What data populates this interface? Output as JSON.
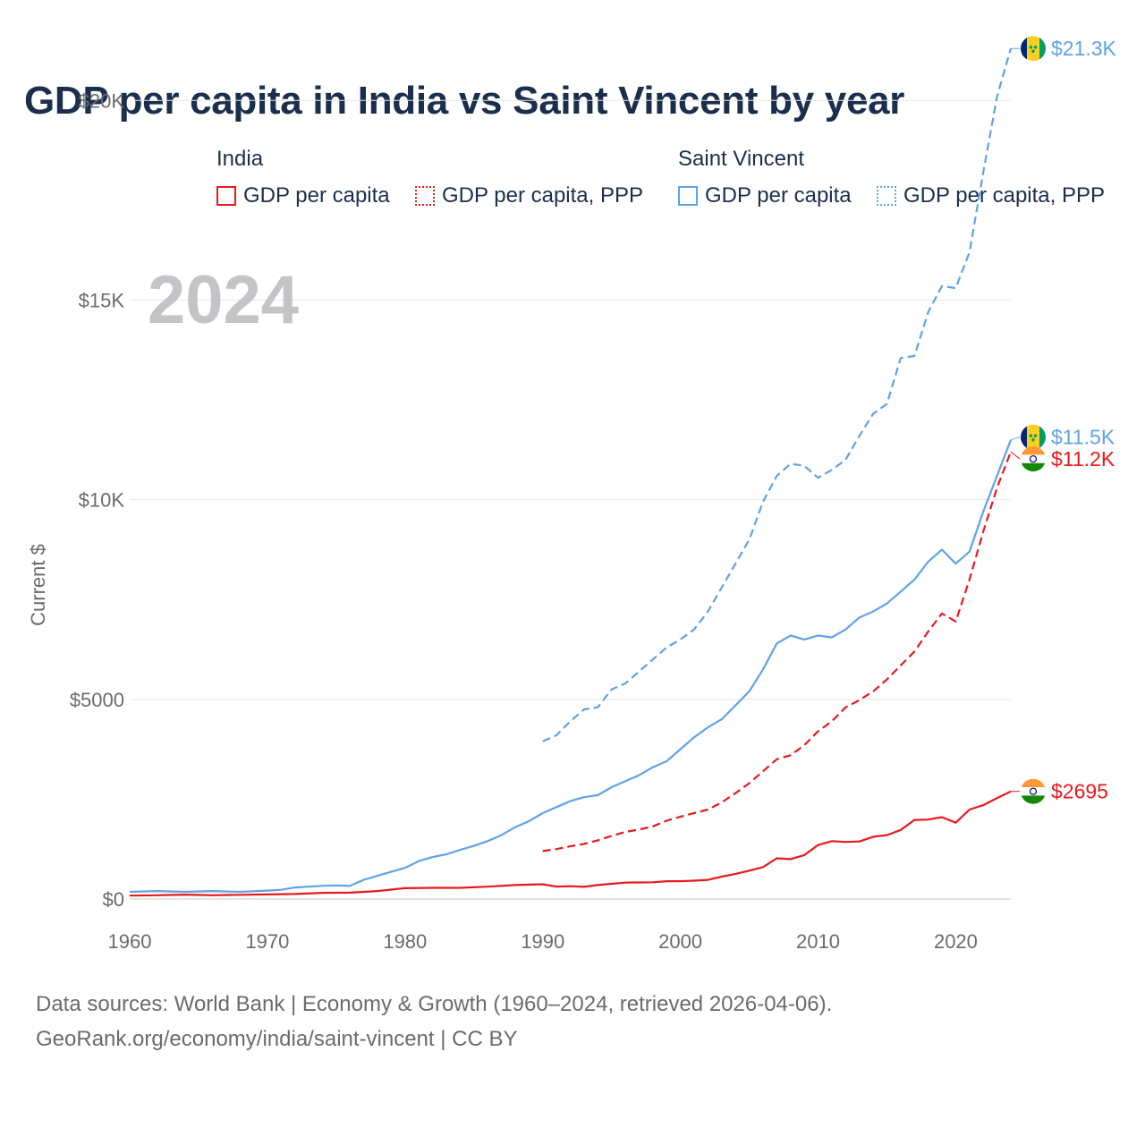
{
  "title": "GDP per capita in India vs Saint Vincent by year",
  "legend": {
    "groups": [
      {
        "name": "India",
        "items": [
          "GDP per capita",
          "GDP per capita, PPP"
        ]
      },
      {
        "name": "Saint Vincent",
        "items": [
          "GDP per capita",
          "GDP per capita, PPP"
        ]
      }
    ]
  },
  "year_watermark": "2024",
  "footer": {
    "line1": "Data sources: World Bank | Economy & Growth (1960–2024, retrieved 2026-04-06).",
    "line2": "GeoRank.org/economy/india/saint-vincent | CC BY"
  },
  "colors": {
    "india": "#e8191c",
    "saint_vincent": "#5fa3e5"
  },
  "chart_data": {
    "type": "line",
    "title": "GDP per capita in India vs Saint Vincent by year",
    "xlabel": "",
    "ylabel": "Current $",
    "xlim": [
      1960,
      2024
    ],
    "ylim": [
      0,
      22000
    ],
    "x_ticks": [
      1960,
      1970,
      1980,
      1990,
      2000,
      2010,
      2020
    ],
    "x_tick_labels": [
      "1960",
      "1970",
      "1980",
      "1990",
      "2000",
      "2010",
      "2020"
    ],
    "y_ticks": [
      0,
      5000,
      10000,
      15000,
      20000
    ],
    "y_tick_labels": [
      "$0",
      "$5000",
      "$10K",
      "$15K",
      "$20K"
    ],
    "grid": true,
    "series": [
      {
        "name": "Saint Vincent GDP per capita, PPP",
        "country": "saint_vincent",
        "style": "dashed",
        "end_label": "$21.3K",
        "points": [
          [
            1990,
            3950
          ],
          [
            1991,
            4100
          ],
          [
            1992,
            4450
          ],
          [
            1993,
            4750
          ],
          [
            1994,
            4800
          ],
          [
            1995,
            5250
          ],
          [
            1996,
            5400
          ],
          [
            1997,
            5700
          ],
          [
            1998,
            6000
          ],
          [
            1999,
            6300
          ],
          [
            2000,
            6500
          ],
          [
            2001,
            6750
          ],
          [
            2002,
            7200
          ],
          [
            2003,
            7800
          ],
          [
            2004,
            8400
          ],
          [
            2005,
            9000
          ],
          [
            2006,
            9950
          ],
          [
            2007,
            10600
          ],
          [
            2008,
            10900
          ],
          [
            2009,
            10850
          ],
          [
            2010,
            10550
          ],
          [
            2011,
            10750
          ],
          [
            2012,
            11000
          ],
          [
            2013,
            11600
          ],
          [
            2014,
            12150
          ],
          [
            2015,
            12400
          ],
          [
            2016,
            13550
          ],
          [
            2017,
            13600
          ],
          [
            2018,
            14700
          ],
          [
            2019,
            15350
          ],
          [
            2020,
            15300
          ],
          [
            2021,
            16200
          ],
          [
            2022,
            18200
          ],
          [
            2023,
            20100
          ],
          [
            2024,
            21300
          ]
        ]
      },
      {
        "name": "Saint Vincent GDP per capita",
        "country": "saint_vincent",
        "style": "solid",
        "end_label": "$11.5K",
        "points": [
          [
            1960,
            180
          ],
          [
            1962,
            200
          ],
          [
            1964,
            180
          ],
          [
            1966,
            200
          ],
          [
            1968,
            180
          ],
          [
            1970,
            210
          ],
          [
            1971,
            230
          ],
          [
            1972,
            290
          ],
          [
            1973,
            310
          ],
          [
            1974,
            330
          ],
          [
            1975,
            340
          ],
          [
            1976,
            330
          ],
          [
            1977,
            480
          ],
          [
            1978,
            580
          ],
          [
            1979,
            680
          ],
          [
            1980,
            780
          ],
          [
            1981,
            950
          ],
          [
            1982,
            1050
          ],
          [
            1983,
            1120
          ],
          [
            1984,
            1230
          ],
          [
            1985,
            1330
          ],
          [
            1986,
            1450
          ],
          [
            1987,
            1600
          ],
          [
            1988,
            1800
          ],
          [
            1989,
            1950
          ],
          [
            1990,
            2150
          ],
          [
            1991,
            2300
          ],
          [
            1992,
            2450
          ],
          [
            1993,
            2550
          ],
          [
            1994,
            2600
          ],
          [
            1995,
            2800
          ],
          [
            1996,
            2950
          ],
          [
            1997,
            3100
          ],
          [
            1998,
            3300
          ],
          [
            1999,
            3450
          ],
          [
            2000,
            3750
          ],
          [
            2001,
            4050
          ],
          [
            2002,
            4300
          ],
          [
            2003,
            4500
          ],
          [
            2004,
            4850
          ],
          [
            2005,
            5200
          ],
          [
            2006,
            5750
          ],
          [
            2007,
            6400
          ],
          [
            2008,
            6600
          ],
          [
            2009,
            6500
          ],
          [
            2010,
            6600
          ],
          [
            2011,
            6550
          ],
          [
            2012,
            6750
          ],
          [
            2013,
            7050
          ],
          [
            2014,
            7200
          ],
          [
            2015,
            7400
          ],
          [
            2016,
            7700
          ],
          [
            2017,
            8000
          ],
          [
            2018,
            8450
          ],
          [
            2019,
            8750
          ],
          [
            2020,
            8400
          ],
          [
            2021,
            8700
          ],
          [
            2022,
            9700
          ],
          [
            2023,
            10600
          ],
          [
            2024,
            11500
          ]
        ]
      },
      {
        "name": "India GDP per capita, PPP",
        "country": "india",
        "style": "dashed",
        "end_label": "$11.2K",
        "points": [
          [
            1990,
            1200
          ],
          [
            1991,
            1250
          ],
          [
            1992,
            1320
          ],
          [
            1993,
            1380
          ],
          [
            1994,
            1470
          ],
          [
            1995,
            1580
          ],
          [
            1996,
            1680
          ],
          [
            1997,
            1740
          ],
          [
            1998,
            1820
          ],
          [
            1999,
            1960
          ],
          [
            2000,
            2060
          ],
          [
            2001,
            2150
          ],
          [
            2002,
            2240
          ],
          [
            2003,
            2420
          ],
          [
            2004,
            2650
          ],
          [
            2005,
            2900
          ],
          [
            2006,
            3200
          ],
          [
            2007,
            3500
          ],
          [
            2008,
            3600
          ],
          [
            2009,
            3850
          ],
          [
            2010,
            4200
          ],
          [
            2011,
            4450
          ],
          [
            2012,
            4800
          ],
          [
            2013,
            4980
          ],
          [
            2014,
            5200
          ],
          [
            2015,
            5500
          ],
          [
            2016,
            5850
          ],
          [
            2017,
            6200
          ],
          [
            2018,
            6700
          ],
          [
            2019,
            7150
          ],
          [
            2020,
            6950
          ],
          [
            2021,
            8000
          ],
          [
            2022,
            9200
          ],
          [
            2023,
            10300
          ],
          [
            2024,
            11200
          ]
        ]
      },
      {
        "name": "India GDP per capita",
        "country": "india",
        "style": "solid",
        "end_label": "$2695",
        "points": [
          [
            1960,
            85
          ],
          [
            1962,
            95
          ],
          [
            1964,
            110
          ],
          [
            1966,
            95
          ],
          [
            1968,
            105
          ],
          [
            1970,
            115
          ],
          [
            1972,
            125
          ],
          [
            1974,
            155
          ],
          [
            1976,
            160
          ],
          [
            1978,
            200
          ],
          [
            1980,
            270
          ],
          [
            1982,
            280
          ],
          [
            1984,
            280
          ],
          [
            1986,
            310
          ],
          [
            1988,
            350
          ],
          [
            1990,
            370
          ],
          [
            1991,
            310
          ],
          [
            1992,
            320
          ],
          [
            1993,
            305
          ],
          [
            1994,
            350
          ],
          [
            1995,
            380
          ],
          [
            1996,
            410
          ],
          [
            1997,
            415
          ],
          [
            1998,
            420
          ],
          [
            1999,
            445
          ],
          [
            2000,
            445
          ],
          [
            2001,
            460
          ],
          [
            2002,
            480
          ],
          [
            2003,
            560
          ],
          [
            2004,
            630
          ],
          [
            2005,
            710
          ],
          [
            2006,
            800
          ],
          [
            2007,
            1020
          ],
          [
            2008,
            1000
          ],
          [
            2009,
            1100
          ],
          [
            2010,
            1350
          ],
          [
            2011,
            1450
          ],
          [
            2012,
            1430
          ],
          [
            2013,
            1440
          ],
          [
            2014,
            1560
          ],
          [
            2015,
            1600
          ],
          [
            2016,
            1730
          ],
          [
            2017,
            1980
          ],
          [
            2018,
            1990
          ],
          [
            2019,
            2050
          ],
          [
            2020,
            1910
          ],
          [
            2021,
            2240
          ],
          [
            2022,
            2350
          ],
          [
            2023,
            2530
          ],
          [
            2024,
            2695
          ]
        ]
      }
    ]
  }
}
